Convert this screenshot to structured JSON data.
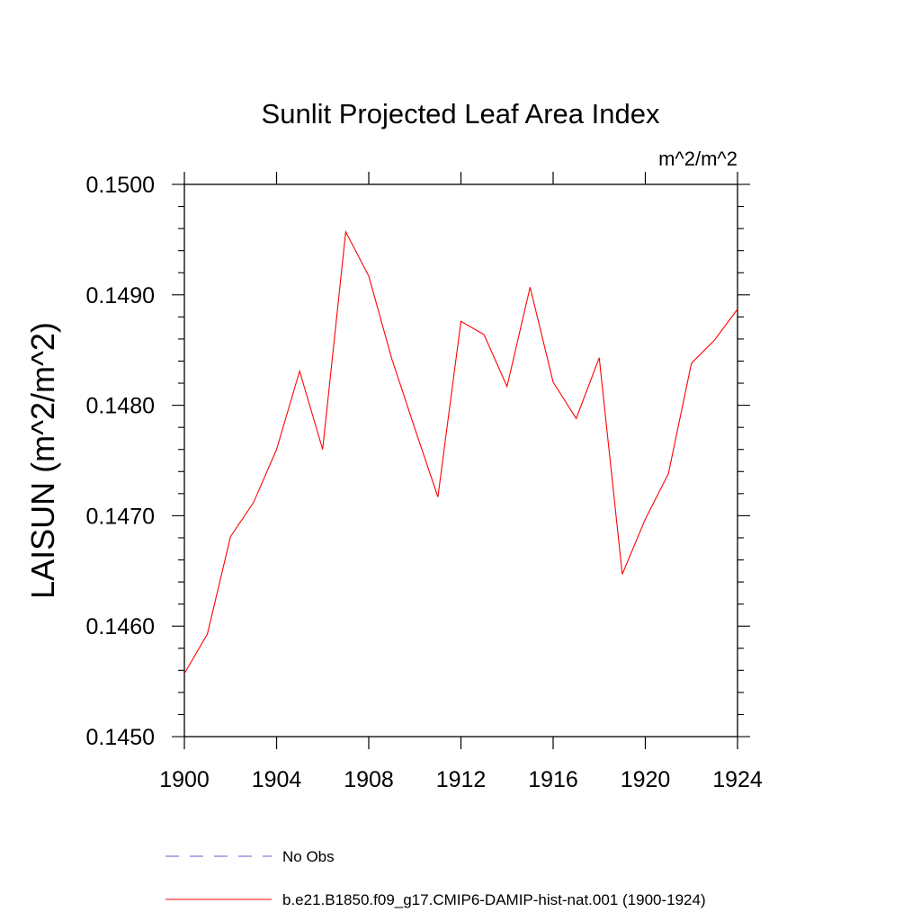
{
  "chart_data": {
    "type": "line",
    "title": "Sunlit Projected Leaf Area Index",
    "units": "m^2/m^2",
    "ylabel": "LAISUN  (m^2/m^2)",
    "xlabel": "",
    "xlim": [
      1900,
      1924
    ],
    "ylim": [
      0.145,
      0.15
    ],
    "x_ticks": [
      "1900",
      "1904",
      "1908",
      "1912",
      "1916",
      "1920",
      "1924"
    ],
    "y_ticks": [
      "0.1450",
      "0.1460",
      "0.1470",
      "0.1480",
      "0.1490",
      "0.1500"
    ],
    "grid": false,
    "legend_position": "bottom",
    "series": [
      {
        "name": "No Obs",
        "color": "#6a5acd",
        "style": "dashed",
        "x": [],
        "values": []
      },
      {
        "name": "b.e21.B1850.f09_g17.CMIP6-DAMIP-hist-nat.001 (1900-1924)",
        "color": "#ff0000",
        "style": "solid",
        "x": [
          1900,
          1901,
          1902,
          1903,
          1904,
          1905,
          1906,
          1907,
          1908,
          1909,
          1910,
          1911,
          1912,
          1913,
          1914,
          1915,
          1916,
          1917,
          1918,
          1919,
          1920,
          1921,
          1922,
          1923,
          1924
        ],
        "values": [
          0.14557,
          0.14593,
          0.14681,
          0.14712,
          0.1476,
          0.14831,
          0.1476,
          0.14957,
          0.14917,
          0.14842,
          0.14779,
          0.14717,
          0.14876,
          0.14864,
          0.14817,
          0.14907,
          0.14821,
          0.14788,
          0.14843,
          0.14647,
          0.14697,
          0.14738,
          0.14838,
          0.14859,
          0.14887
        ]
      }
    ]
  }
}
